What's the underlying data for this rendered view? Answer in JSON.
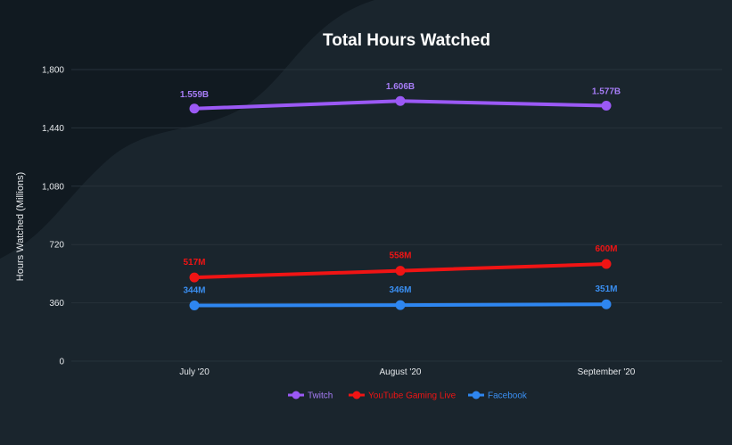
{
  "chart_data": {
    "type": "line",
    "title": "Total Hours Watched",
    "xlabel": "",
    "ylabel": "Hours Watched (Millions)",
    "categories": [
      "July '20",
      "August '20",
      "September '20"
    ],
    "ylim": [
      0,
      1800
    ],
    "yticks": [
      "0",
      "360",
      "720",
      "1,080",
      "1,440",
      "1,800"
    ],
    "ytick_values": [
      0,
      360,
      720,
      1080,
      1440,
      1800
    ],
    "grid": true,
    "legend": "bottom-center",
    "series": [
      {
        "name": "Twitch",
        "values": [
          1559,
          1606,
          1577
        ],
        "labels": [
          "1.559B",
          "1.606B",
          "1.577B"
        ],
        "color": "#9b59f5",
        "label_color": "#a77df7"
      },
      {
        "name": "YouTube Gaming Live",
        "values": [
          517,
          558,
          600
        ],
        "labels": [
          "517M",
          "558M",
          "600M"
        ],
        "color": "#f01414",
        "label_color": "#f01414"
      },
      {
        "name": "Facebook",
        "values": [
          344,
          346,
          351
        ],
        "labels": [
          "344M",
          "346M",
          "351M"
        ],
        "color": "#2e86f0",
        "label_color": "#3a8ff2"
      }
    ]
  },
  "colors": {
    "background": "#111a21",
    "wave": "#1a252d",
    "grid": "#27323a",
    "text": "#e6e9ec"
  }
}
